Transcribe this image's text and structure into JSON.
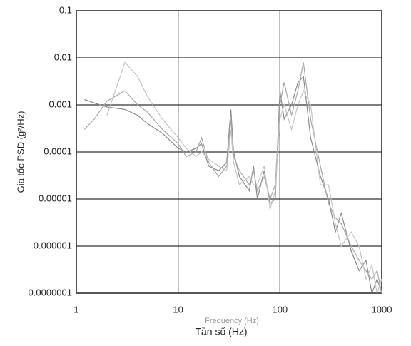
{
  "chart_data": {
    "type": "line",
    "ylabel": "Gia tốc PSD (g²/Hz)",
    "xlabel": "Tần số (Hz)",
    "annotations": [
      "Frequency (Hz)"
    ],
    "log_x": true,
    "log_y": true,
    "grid": true,
    "xlim": [
      1,
      1000
    ],
    "xticks": [
      1,
      10,
      100,
      1000
    ],
    "ylim": [
      1e-07,
      0.1
    ],
    "yticks": [
      {
        "value": 1e-07,
        "label": "0.0000001"
      },
      1e-06,
      1e-05,
      0.0001,
      0.001,
      0.01,
      0.1
    ],
    "x": [
      1.2,
      1.5,
      2,
      3,
      4,
      5,
      7,
      10,
      12,
      15,
      17,
      20,
      25,
      30,
      33,
      35,
      40,
      50,
      55,
      60,
      70,
      80,
      90,
      100,
      110,
      130,
      150,
      170,
      200,
      250,
      300,
      350,
      400,
      500,
      600,
      700,
      800,
      900,
      1000
    ],
    "series": [
      {
        "color": "#8a8a8a",
        "values": [
          0.0013,
          0.0011,
          0.0009,
          0.0008,
          0.0006,
          0.0004,
          0.00025,
          0.00012,
          0.0001,
          0.00012,
          0.00015,
          5e-05,
          4e-05,
          6e-05,
          0.0008,
          0.0001,
          3e-05,
          1.5e-05,
          5e-05,
          1e-05,
          4e-05,
          8e-06,
          1e-05,
          0.002,
          0.0005,
          0.001,
          0.003,
          0.004,
          0.0002,
          3e-05,
          1e-05,
          2e-06,
          5e-06,
          8e-07,
          3e-07,
          5e-07,
          1e-07,
          2e-07,
          1e-07
        ]
      },
      {
        "color": "#a8a8a8",
        "values": [
          0.0003,
          0.0005,
          0.0012,
          0.002,
          0.001,
          0.0007,
          0.0003,
          0.00015,
          8e-05,
          0.0001,
          0.0002,
          6e-05,
          3e-05,
          5e-05,
          0.0005,
          8e-05,
          4e-05,
          2e-05,
          4e-05,
          1.5e-05,
          3e-05,
          1e-05,
          2e-05,
          0.001,
          0.003,
          0.0006,
          0.002,
          0.008,
          0.0005,
          5e-05,
          8e-06,
          4e-06,
          3e-06,
          1e-06,
          5e-07,
          3e-07,
          2e-07,
          3e-07,
          1e-07
        ]
      },
      {
        "color": "#c4c4c4",
        "values": [
          null,
          null,
          0.0006,
          0.008,
          0.004,
          0.0015,
          0.0005,
          0.0002,
          0.00012,
          8e-05,
          0.0001,
          7e-05,
          5e-05,
          4e-05,
          0.0003,
          6e-05,
          2e-05,
          3e-05,
          2e-05,
          2e-05,
          5e-05,
          6e-06,
          1.5e-05,
          0.0005,
          0.001,
          0.0003,
          0.001,
          0.002,
          0.001,
          2e-05,
          2e-05,
          3e-06,
          1e-06,
          2e-06,
          1e-06,
          2e-07,
          4e-07,
          1e-07,
          2e-07
        ]
      }
    ]
  }
}
